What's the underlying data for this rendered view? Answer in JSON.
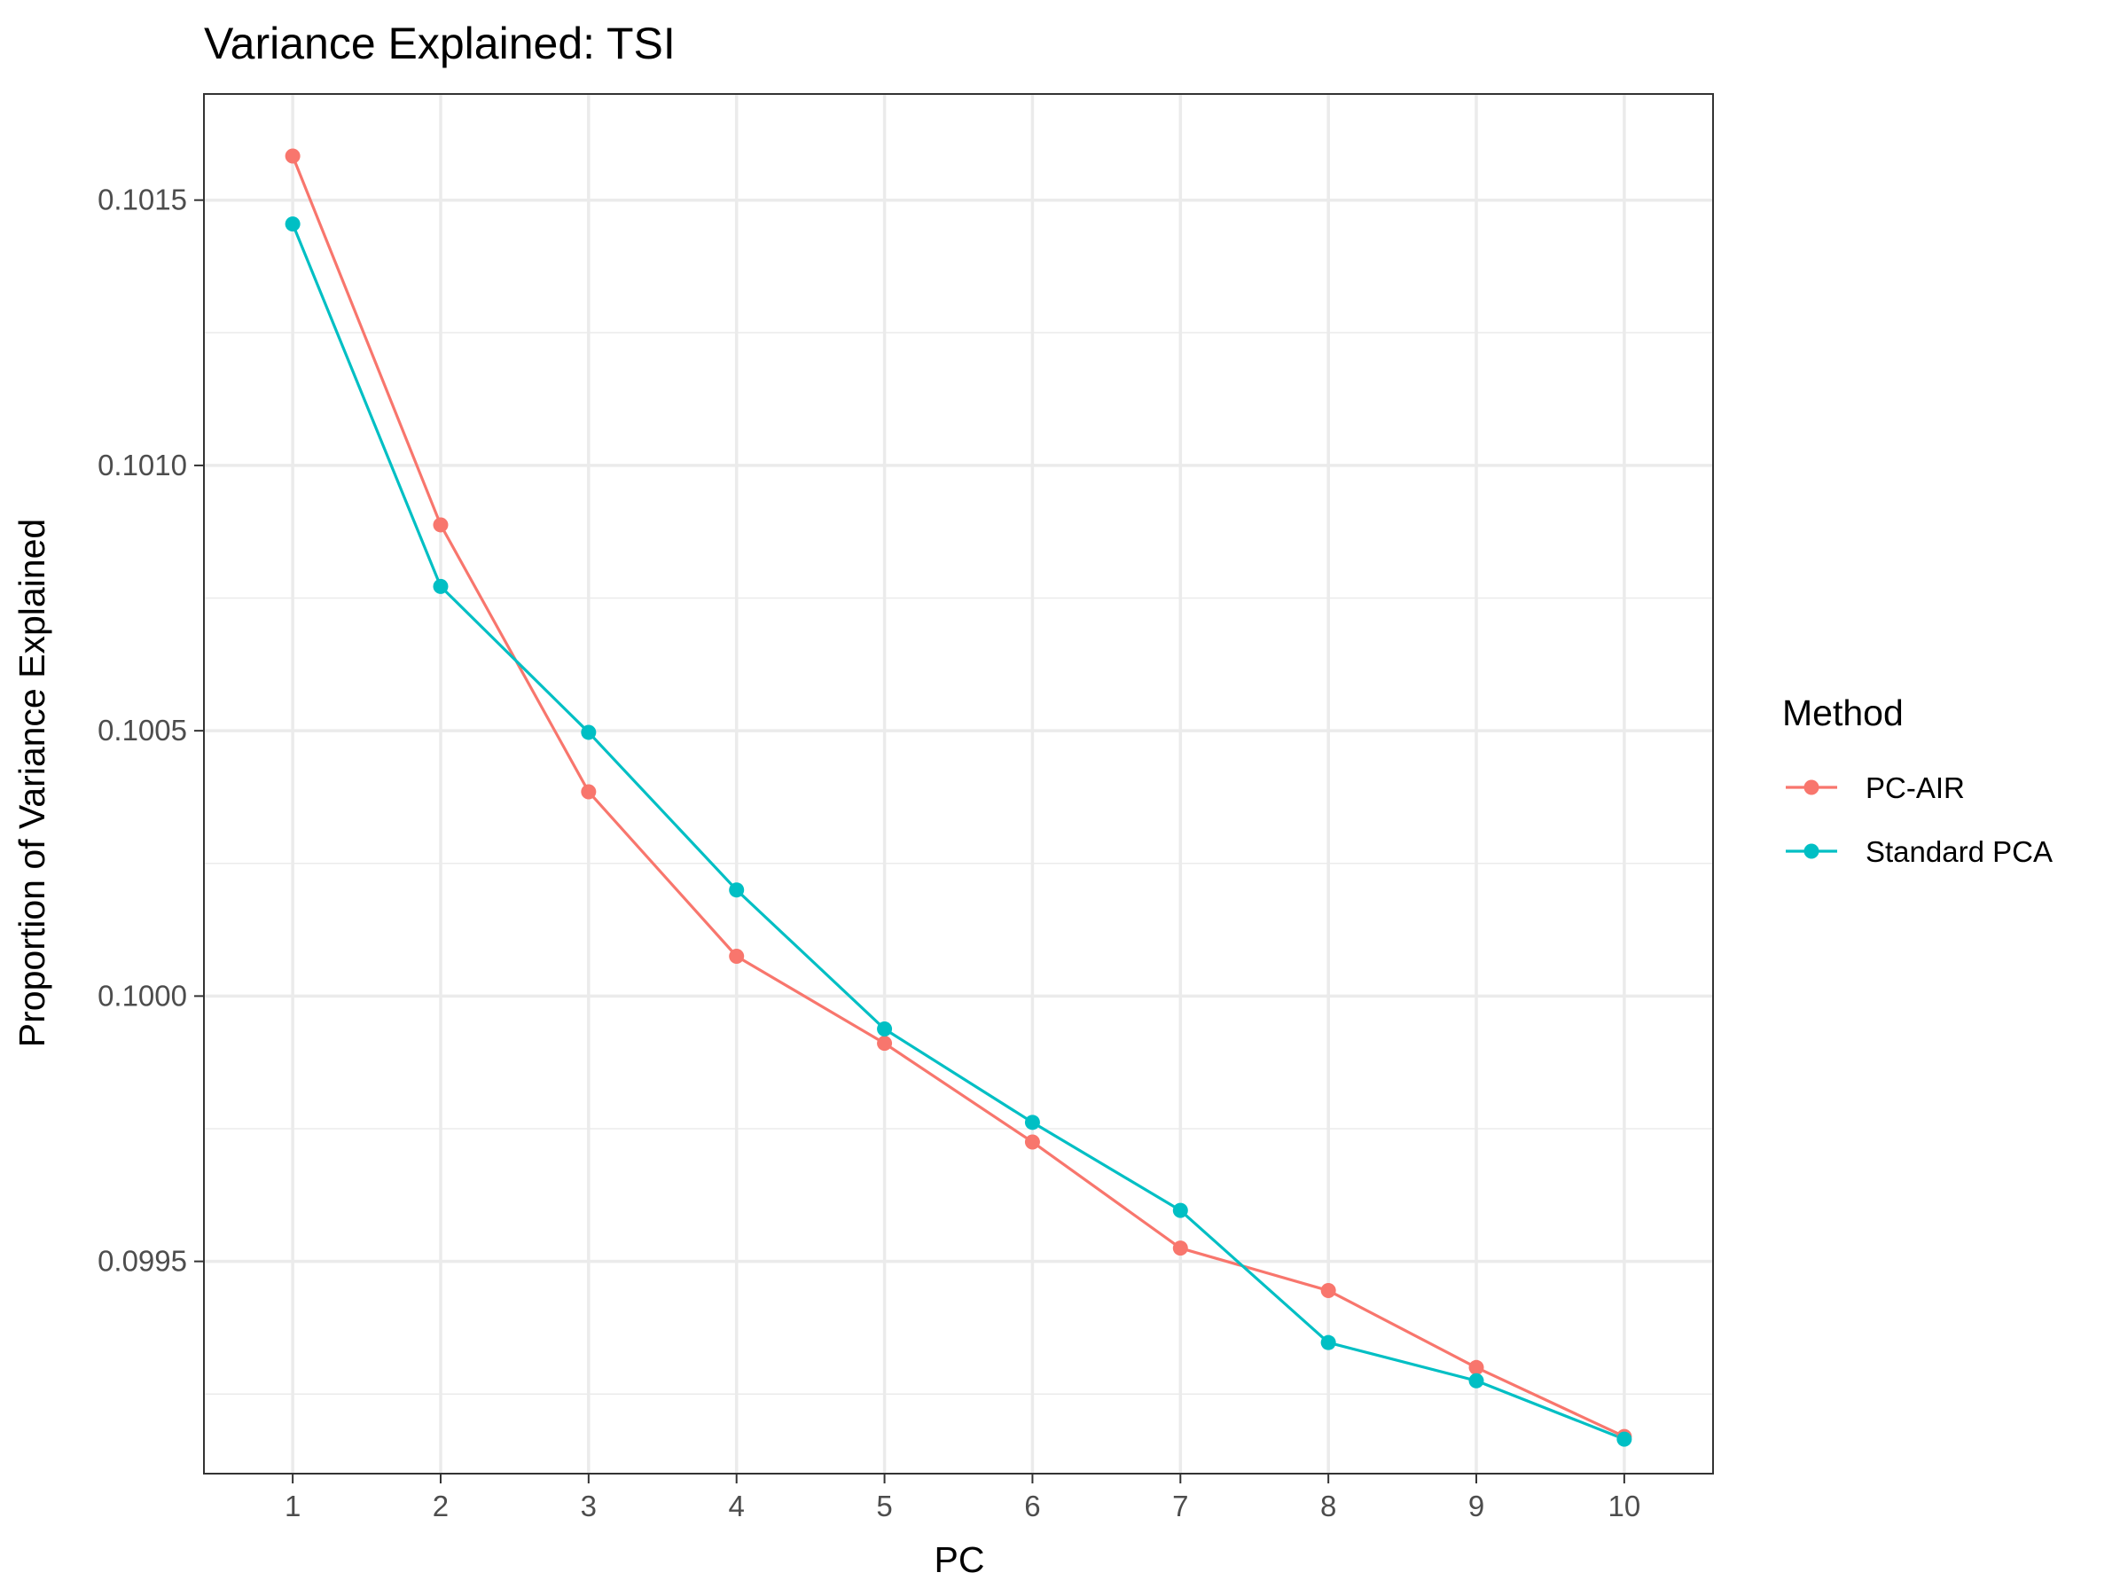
{
  "chart_data": {
    "type": "line",
    "title": "Variance Explained: TSI",
    "xlabel": "PC",
    "ylabel": "Proportion of Variance Explained",
    "x": [
      1,
      2,
      3,
      4,
      5,
      6,
      7,
      8,
      9,
      10
    ],
    "x_tick_labels": [
      "1",
      "2",
      "3",
      "4",
      "5",
      "6",
      "7",
      "8",
      "9",
      "10"
    ],
    "y_tick_labels": [
      "0.0995",
      "0.1000",
      "0.1005",
      "0.1010",
      "0.1015"
    ],
    "y_ticks": [
      0.0995,
      0.1,
      0.1005,
      0.101,
      0.1015
    ],
    "xlim": [
      0.4,
      10.6
    ],
    "ylim": [
      0.0991,
      0.1017
    ],
    "grid": true,
    "legend": {
      "title": "Method",
      "placement": "right"
    },
    "series": [
      {
        "name": "PC-AIR",
        "color": "#F8766D",
        "values": [
          0.101583,
          0.100888,
          0.100385,
          0.100075,
          0.099911,
          0.099725,
          0.099525,
          0.099445,
          0.0993,
          0.09917
        ]
      },
      {
        "name": "Standard PCA",
        "color": "#00BFC4",
        "values": [
          0.101455,
          0.100772,
          0.100497,
          0.1002,
          0.099938,
          0.099762,
          0.099596,
          0.099347,
          0.099275,
          0.099165
        ]
      }
    ]
  }
}
